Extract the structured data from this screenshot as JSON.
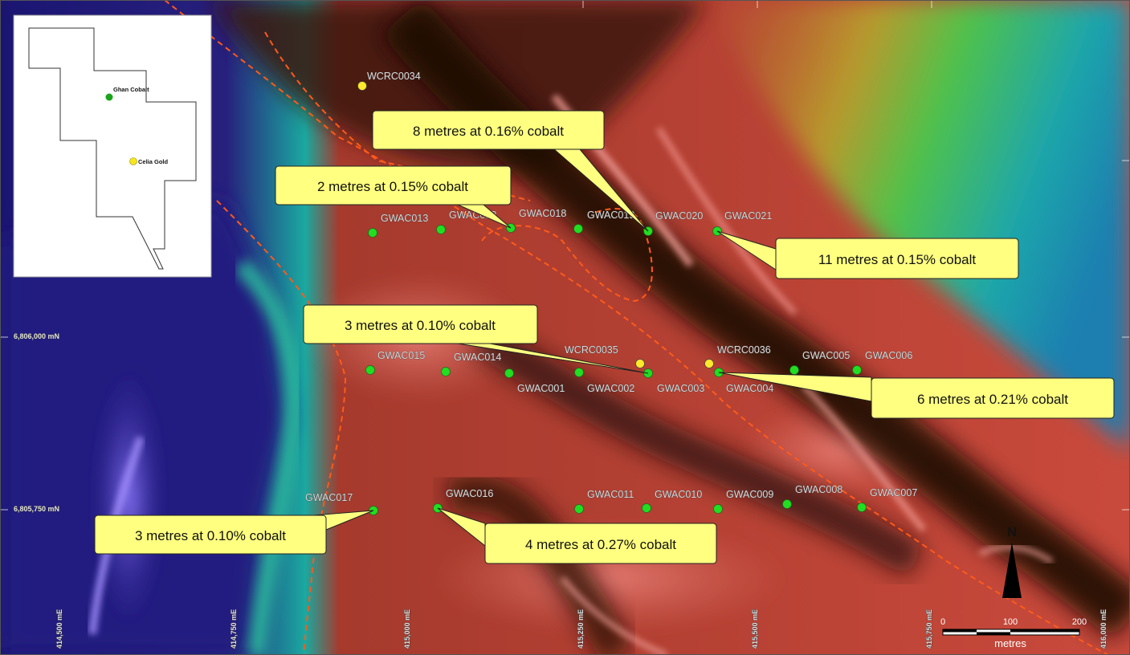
{
  "inset": {
    "deposits": [
      {
        "label": "Ghan Cobalt",
        "color": "#1aa51a"
      },
      {
        "label": "Celia Gold",
        "color": "#f5e61e"
      }
    ]
  },
  "grid": {
    "northings": [
      "6,806,000 mN",
      "6,805,750 mN"
    ],
    "eastings": [
      "414,500 mE",
      "414,750 mE",
      "415,000 mE",
      "415,250 mE",
      "415,500 mE",
      "415,750 mE",
      "416,000 mE"
    ]
  },
  "drillholes": [
    {
      "id": "WCRC0034",
      "type": "rc"
    },
    {
      "id": "GWAC013",
      "type": "ac"
    },
    {
      "id": "GWAC012",
      "type": "ac"
    },
    {
      "id": "GWAC018",
      "type": "ac"
    },
    {
      "id": "GWAC019",
      "type": "ac"
    },
    {
      "id": "GWAC020",
      "type": "ac"
    },
    {
      "id": "GWAC021",
      "type": "ac"
    },
    {
      "id": "GWAC015",
      "type": "ac"
    },
    {
      "id": "GWAC014",
      "type": "ac"
    },
    {
      "id": "GWAC001",
      "type": "ac"
    },
    {
      "id": "GWAC002",
      "type": "ac"
    },
    {
      "id": "WCRC0035",
      "type": "rc"
    },
    {
      "id": "GWAC003",
      "type": "ac"
    },
    {
      "id": "WCRC0036",
      "type": "rc"
    },
    {
      "id": "GWAC004",
      "type": "ac"
    },
    {
      "id": "GWAC005",
      "type": "ac"
    },
    {
      "id": "GWAC006",
      "type": "ac"
    },
    {
      "id": "GWAC017",
      "type": "ac"
    },
    {
      "id": "GWAC016",
      "type": "ac"
    },
    {
      "id": "GWAC011",
      "type": "ac"
    },
    {
      "id": "GWAC010",
      "type": "ac"
    },
    {
      "id": "GWAC009",
      "type": "ac"
    },
    {
      "id": "GWAC008",
      "type": "ac"
    },
    {
      "id": "GWAC007",
      "type": "ac"
    }
  ],
  "callouts": [
    "8 metres at 0.16% cobalt",
    "2 metres at 0.15% cobalt",
    "11 metres at 0.15% cobalt",
    "3 metres at 0.10% cobalt",
    "6 metres at 0.21% cobalt",
    "3 metres at 0.10% cobalt",
    "4 metres at 0.27% cobalt"
  ],
  "north_arrow": "N",
  "scale_bar": {
    "ticks": [
      "0",
      "100",
      "200"
    ],
    "units": "metres"
  },
  "colors": {
    "ac_hole": "#22dd22",
    "rc_hole": "#ffe92a",
    "callout_fill": "#ffff80",
    "structure_line": "#ff5a1a"
  }
}
